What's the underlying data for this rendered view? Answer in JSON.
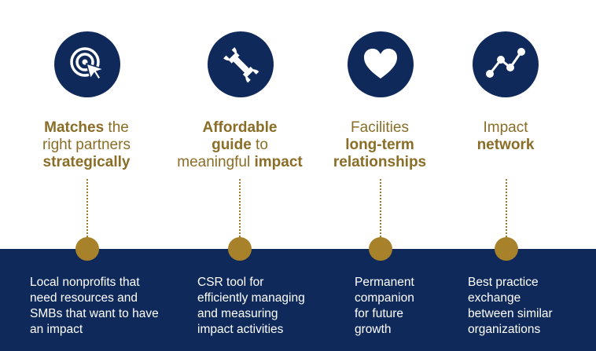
{
  "colors": {
    "navy": "#0f2a5a",
    "gold": "#8a6d26",
    "node_gold": "#a8822a"
  },
  "features": [
    {
      "icon": "target-cursor-icon",
      "title": {
        "l1_bold": "Matches",
        "l1_rest": " the",
        "l2": "right partners",
        "l3_bold": "strategically"
      },
      "description": [
        "Local nonprofits that",
        "need resources and",
        "SMBs that want to have",
        "an impact"
      ]
    },
    {
      "icon": "wrench-icon",
      "title": {
        "l1_bold": "Affordable",
        "l2_bold": "guide",
        "l2_rest": " to",
        "l3_pre": "meaningful ",
        "l3_bold": "impact"
      },
      "description": [
        "CSR tool for",
        "efficiently managing",
        "and measuring",
        "impact activities"
      ]
    },
    {
      "icon": "heart-icon",
      "title": {
        "l1": "Facilities",
        "l2_bold": "long-term",
        "l3_bold": "relationships"
      },
      "description": [
        "Permanent",
        "companion",
        "for future",
        "growth"
      ]
    },
    {
      "icon": "network-graph-icon",
      "title": {
        "l1": "Impact",
        "l2_bold": "network"
      },
      "description": [
        "Best practice",
        "exchange",
        "between similar",
        "organizations"
      ]
    }
  ]
}
